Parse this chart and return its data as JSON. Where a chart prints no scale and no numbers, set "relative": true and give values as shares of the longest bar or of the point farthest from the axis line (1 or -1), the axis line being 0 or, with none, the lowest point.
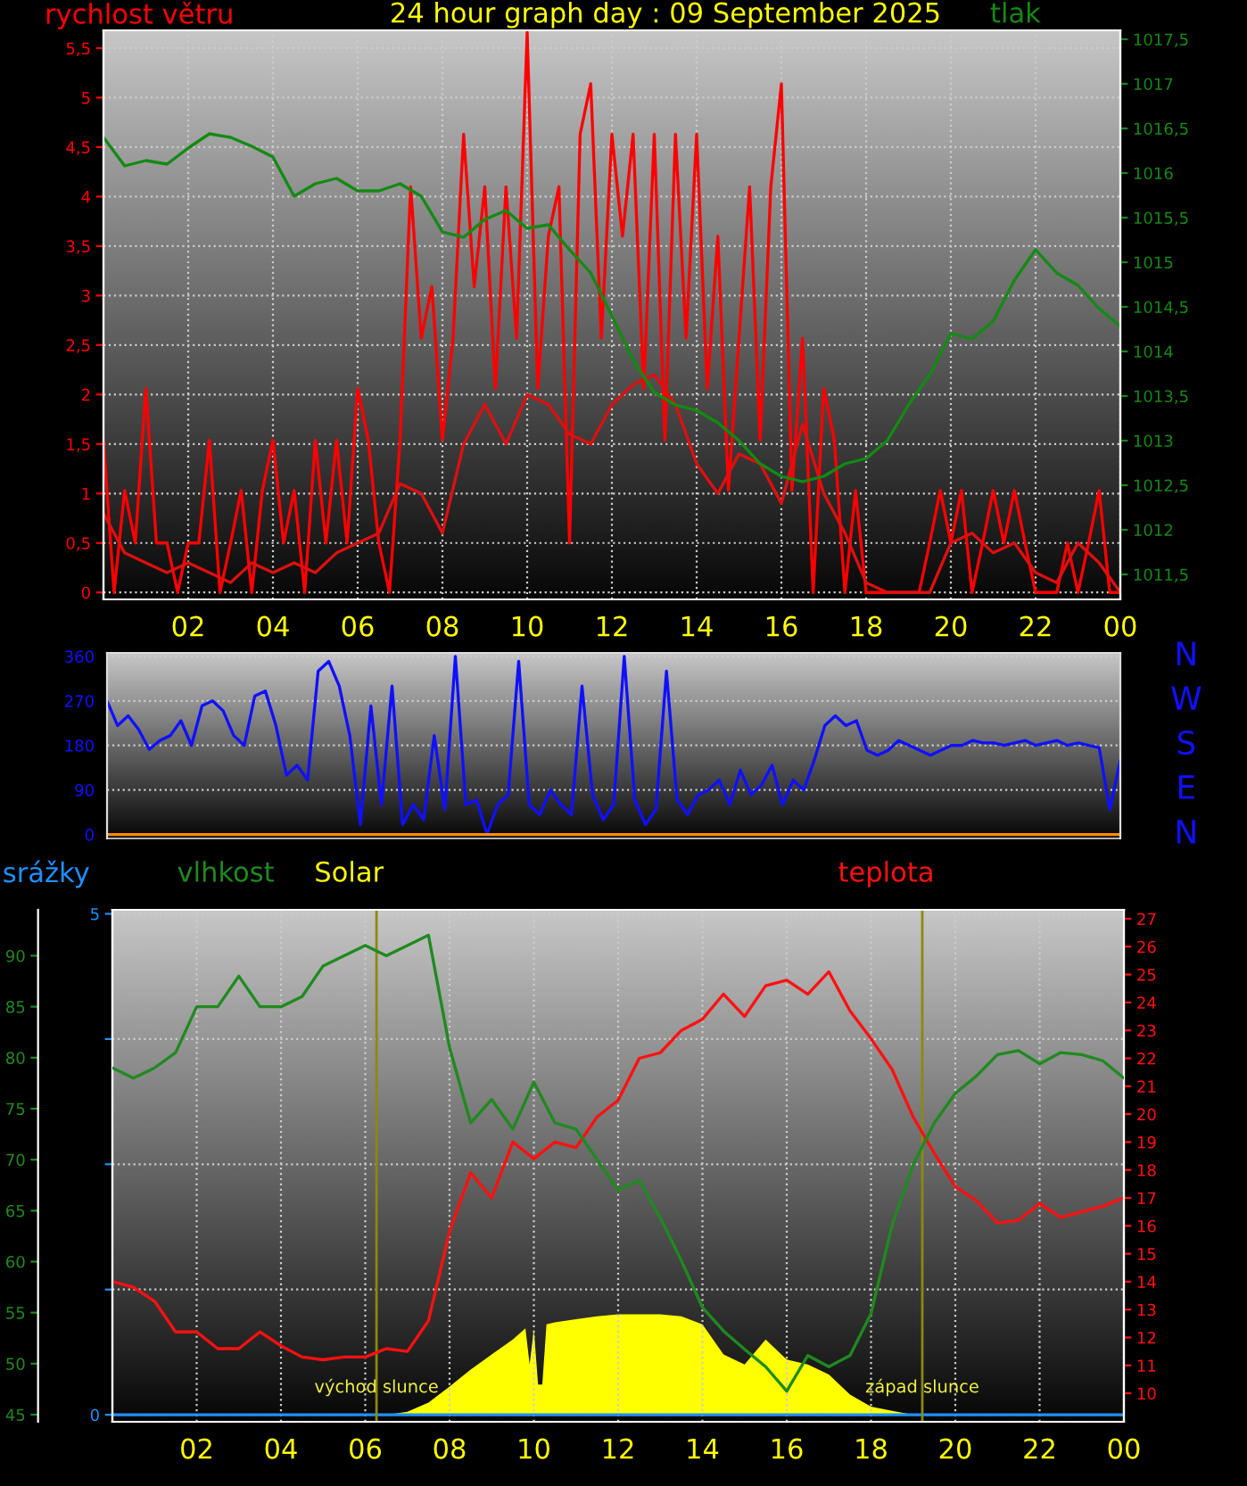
{
  "chart_data": [
    {
      "type": "line",
      "title": "24 hour graph day : 09 September 2025",
      "ylabel": "rychlost větru",
      "y2label": "tlak",
      "xlim": [
        "2025-09-09T00:00",
        "2025-09-10T00:00"
      ],
      "xticks": [
        {
          "value": "2025-09-09T02:00",
          "label": "02"
        },
        {
          "value": "2025-09-09T04:00",
          "label": "04"
        },
        {
          "value": "2025-09-09T06:00",
          "label": "06"
        },
        {
          "value": "2025-09-09T08:00",
          "label": "08"
        },
        {
          "value": "2025-09-09T10:00",
          "label": "10"
        },
        {
          "value": "2025-09-09T12:00",
          "label": "12"
        },
        {
          "value": "2025-09-09T14:00",
          "label": "14"
        },
        {
          "value": "2025-09-09T16:00",
          "label": "16"
        },
        {
          "value": "2025-09-09T18:00",
          "label": "18"
        },
        {
          "value": "2025-09-09T20:00",
          "label": "20"
        },
        {
          "value": "2025-09-09T22:00",
          "label": "22"
        },
        {
          "value": "2025-09-10T00:00",
          "label": "00"
        }
      ],
      "ylim": [
        -0.07,
        5.68
      ],
      "yticks": [
        0,
        {
          "value": 0.5,
          "label": "0,5"
        },
        1,
        {
          "value": 1.5,
          "label": "1,5"
        },
        2,
        {
          "value": 2.5,
          "label": "2,5"
        },
        3,
        {
          "value": 3.5,
          "label": "3,5"
        },
        4,
        {
          "value": 4.5,
          "label": "4,5"
        },
        5,
        {
          "value": 5.5,
          "label": "5,5"
        }
      ],
      "y2lim": [
        1011.22,
        1017.6
      ],
      "y2ticks": [
        {
          "value": 1011.5,
          "label": "1011,5"
        },
        1012,
        {
          "value": 1012.5,
          "label": "1012,5"
        },
        1013,
        {
          "value": 1013.5,
          "label": "1013,5"
        },
        1014,
        {
          "value": 1014.5,
          "label": "1014,5"
        },
        1015,
        {
          "value": 1015.5,
          "label": "1015,5"
        },
        1016,
        {
          "value": 1016.5,
          "label": "1016,5"
        },
        1017,
        {
          "value": 1017.5,
          "label": "1017,5"
        }
      ],
      "grid": true,
      "series": [
        {
          "color": "#ff0000",
          "x": [
            "2025-09-09T00:00",
            "2025-09-09T00:15",
            "2025-09-09T00:30",
            "2025-09-09T00:45",
            "2025-09-09T01:00",
            "2025-09-09T01:15",
            "2025-09-09T01:30",
            "2025-09-09T01:45",
            "2025-09-09T02:00",
            "2025-09-09T02:15",
            "2025-09-09T02:30",
            "2025-09-09T02:45",
            "2025-09-09T03:00",
            "2025-09-09T03:15",
            "2025-09-09T03:30",
            "2025-09-09T03:45",
            "2025-09-09T04:00",
            "2025-09-09T04:15",
            "2025-09-09T04:30",
            "2025-09-09T04:45",
            "2025-09-09T05:00",
            "2025-09-09T05:15",
            "2025-09-09T05:30",
            "2025-09-09T05:45",
            "2025-09-09T06:00",
            "2025-09-09T06:15",
            "2025-09-09T06:30",
            "2025-09-09T06:45",
            "2025-09-09T07:00",
            "2025-09-09T07:15",
            "2025-09-09T07:30",
            "2025-09-09T07:45",
            "2025-09-09T08:00",
            "2025-09-09T08:15",
            "2025-09-09T08:30",
            "2025-09-09T08:45",
            "2025-09-09T09:00",
            "2025-09-09T09:15",
            "2025-09-09T09:30",
            "2025-09-09T09:45",
            "2025-09-09T10:00",
            "2025-09-09T10:15",
            "2025-09-09T10:30",
            "2025-09-09T10:45",
            "2025-09-09T11:00",
            "2025-09-09T11:15",
            "2025-09-09T11:30",
            "2025-09-09T11:45",
            "2025-09-09T12:00",
            "2025-09-09T12:15",
            "2025-09-09T12:30",
            "2025-09-09T12:45",
            "2025-09-09T13:00",
            "2025-09-09T13:15",
            "2025-09-09T13:30",
            "2025-09-09T13:45",
            "2025-09-09T14:00",
            "2025-09-09T14:15",
            "2025-09-09T14:30",
            "2025-09-09T14:45",
            "2025-09-09T15:00",
            "2025-09-09T15:15",
            "2025-09-09T15:30",
            "2025-09-09T15:45",
            "2025-09-09T16:00",
            "2025-09-09T16:15",
            "2025-09-09T16:30",
            "2025-09-09T16:45",
            "2025-09-09T17:00",
            "2025-09-09T17:15",
            "2025-09-09T17:30",
            "2025-09-09T17:45",
            "2025-09-09T18:00",
            "2025-09-09T18:15",
            "2025-09-09T18:30",
            "2025-09-09T18:45",
            "2025-09-09T19:00",
            "2025-09-09T19:15",
            "2025-09-09T19:30",
            "2025-09-09T19:45",
            "2025-09-09T20:00",
            "2025-09-09T20:15",
            "2025-09-09T20:30",
            "2025-09-09T20:45",
            "2025-09-09T21:00",
            "2025-09-09T21:15",
            "2025-09-09T21:30",
            "2025-09-09T21:45",
            "2025-09-09T22:00",
            "2025-09-09T22:15",
            "2025-09-09T22:30",
            "2025-09-09T22:45",
            "2025-09-09T23:00",
            "2025-09-09T23:15",
            "2025-09-09T23:30",
            "2025-09-09T23:45",
            "2025-09-10T00:00"
          ],
          "values": [
            1.54,
            0,
            1.03,
            0.5,
            2.06,
            0.5,
            0.5,
            0,
            0.5,
            0.5,
            1.54,
            0,
            0.5,
            1.03,
            0,
            1.03,
            1.54,
            0.5,
            1.03,
            0,
            1.54,
            0.5,
            1.54,
            0.5,
            2.06,
            1.54,
            0.5,
            0,
            1.54,
            4.1,
            2.57,
            3.09,
            1.54,
            2.57,
            4.63,
            3.09,
            4.1,
            2.06,
            4.1,
            2.57,
            5.66,
            2.06,
            3.6,
            4.1,
            0.5,
            4.63,
            5.14,
            2.57,
            4.63,
            3.6,
            4.63,
            2.06,
            4.63,
            1.54,
            4.63,
            2.57,
            4.63,
            2.06,
            3.6,
            1.03,
            2.57,
            4.1,
            1.54,
            4.1,
            5.14,
            1.03,
            2.57,
            0,
            2.06,
            1.54,
            0,
            1.03,
            0,
            0,
            0,
            0,
            0,
            0,
            0.5,
            1.03,
            0.5,
            1.03,
            0,
            0.5,
            1.03,
            0.5,
            1.03,
            0.5,
            0,
            0,
            0,
            0.5,
            0,
            0.5,
            1.03,
            0,
            0
          ]
        },
        {
          "color": "#dd1010",
          "x": [
            "2025-09-09T00:00",
            "2025-09-09T00:30",
            "2025-09-09T01:00",
            "2025-09-09T01:30",
            "2025-09-09T02:00",
            "2025-09-09T02:30",
            "2025-09-09T03:00",
            "2025-09-09T03:30",
            "2025-09-09T04:00",
            "2025-09-09T04:30",
            "2025-09-09T05:00",
            "2025-09-09T05:30",
            "2025-09-09T06:00",
            "2025-09-09T06:30",
            "2025-09-09T07:00",
            "2025-09-09T07:30",
            "2025-09-09T08:00",
            "2025-09-09T08:30",
            "2025-09-09T09:00",
            "2025-09-09T09:30",
            "2025-09-09T10:00",
            "2025-09-09T10:30",
            "2025-09-09T11:00",
            "2025-09-09T11:30",
            "2025-09-09T12:00",
            "2025-09-09T12:30",
            "2025-09-09T13:00",
            "2025-09-09T13:30",
            "2025-09-09T14:00",
            "2025-09-09T14:30",
            "2025-09-09T15:00",
            "2025-09-09T15:30",
            "2025-09-09T16:00",
            "2025-09-09T16:30",
            "2025-09-09T17:00",
            "2025-09-09T17:30",
            "2025-09-09T18:00",
            "2025-09-09T18:30",
            "2025-09-09T19:00",
            "2025-09-09T19:30",
            "2025-09-09T20:00",
            "2025-09-09T20:30",
            "2025-09-09T21:00",
            "2025-09-09T21:30",
            "2025-09-09T22:00",
            "2025-09-09T22:30",
            "2025-09-09T23:00",
            "2025-09-09T23:30",
            "2025-09-10T00:00"
          ],
          "values": [
            0.8,
            0.4,
            0.3,
            0.2,
            0.3,
            0.2,
            0.1,
            0.3,
            0.2,
            0.3,
            0.2,
            0.4,
            0.5,
            0.6,
            1.1,
            1.0,
            0.6,
            1.5,
            1.9,
            1.5,
            2.0,
            1.9,
            1.6,
            1.5,
            1.9,
            2.1,
            2.2,
            1.9,
            1.3,
            1.0,
            1.4,
            1.3,
            0.9,
            1.7,
            1.0,
            0.6,
            0.1,
            0,
            0,
            0,
            0.5,
            0.6,
            0.4,
            0.5,
            0.2,
            0.1,
            0.5,
            0.3,
            0
          ]
        },
        {
          "color": "#138a13",
          "axis": "y2",
          "x": [
            "2025-09-09T00:00",
            "2025-09-09T00:30",
            "2025-09-09T01:00",
            "2025-09-09T01:30",
            "2025-09-09T02:00",
            "2025-09-09T02:30",
            "2025-09-09T03:00",
            "2025-09-09T03:30",
            "2025-09-09T04:00",
            "2025-09-09T04:30",
            "2025-09-09T05:00",
            "2025-09-09T05:30",
            "2025-09-09T06:00",
            "2025-09-09T06:30",
            "2025-09-09T07:00",
            "2025-09-09T07:30",
            "2025-09-09T08:00",
            "2025-09-09T08:30",
            "2025-09-09T09:00",
            "2025-09-09T09:30",
            "2025-09-09T10:00",
            "2025-09-09T10:30",
            "2025-09-09T11:00",
            "2025-09-09T11:30",
            "2025-09-09T12:00",
            "2025-09-09T12:30",
            "2025-09-09T13:00",
            "2025-09-09T13:30",
            "2025-09-09T14:00",
            "2025-09-09T14:30",
            "2025-09-09T15:00",
            "2025-09-09T15:30",
            "2025-09-09T16:00",
            "2025-09-09T16:30",
            "2025-09-09T17:00",
            "2025-09-09T17:30",
            "2025-09-09T18:00",
            "2025-09-09T18:30",
            "2025-09-09T19:00",
            "2025-09-09T19:30",
            "2025-09-09T20:00",
            "2025-09-09T20:30",
            "2025-09-09T21:00",
            "2025-09-09T21:30",
            "2025-09-09T22:00",
            "2025-09-09T22:30",
            "2025-09-09T23:00",
            "2025-09-09T23:30",
            "2025-09-10T00:00"
          ],
          "values": [
            1016.4,
            1016.08,
            1016.14,
            1016.1,
            1016.28,
            1016.44,
            1016.4,
            1016.3,
            1016.18,
            1015.74,
            1015.88,
            1015.94,
            1015.8,
            1015.8,
            1015.88,
            1015.74,
            1015.34,
            1015.28,
            1015.48,
            1015.58,
            1015.38,
            1015.42,
            1015.14,
            1014.88,
            1014.4,
            1013.9,
            1013.54,
            1013.4,
            1013.34,
            1013.2,
            1013.0,
            1012.74,
            1012.6,
            1012.54,
            1012.6,
            1012.74,
            1012.8,
            1013.0,
            1013.4,
            1013.74,
            1014.2,
            1014.14,
            1014.34,
            1014.8,
            1015.14,
            1014.88,
            1014.74,
            1014.48,
            1014.28
          ]
        }
      ]
    },
    {
      "type": "line",
      "xlim": [
        "2025-09-09T00:00",
        "2025-09-10T00:00"
      ],
      "tick_labels": "y",
      "ylim": [
        -8,
        367
      ],
      "yticks": [
        0,
        90,
        180,
        270,
        360
      ],
      "grid": "y",
      "annotations": [
        "N",
        "W",
        "S",
        "E",
        "N"
      ],
      "series": [
        {
          "color": "#1010ff",
          "x": [
            "2025-09-09T00:00",
            "2025-09-09T00:15",
            "2025-09-09T00:30",
            "2025-09-09T00:45",
            "2025-09-09T01:00",
            "2025-09-09T01:15",
            "2025-09-09T01:30",
            "2025-09-09T01:45",
            "2025-09-09T02:00",
            "2025-09-09T02:15",
            "2025-09-09T02:30",
            "2025-09-09T02:45",
            "2025-09-09T03:00",
            "2025-09-09T03:15",
            "2025-09-09T03:30",
            "2025-09-09T03:45",
            "2025-09-09T04:00",
            "2025-09-09T04:15",
            "2025-09-09T04:30",
            "2025-09-09T04:45",
            "2025-09-09T05:00",
            "2025-09-09T05:15",
            "2025-09-09T05:30",
            "2025-09-09T05:45",
            "2025-09-09T06:00",
            "2025-09-09T06:15",
            "2025-09-09T06:30",
            "2025-09-09T06:45",
            "2025-09-09T07:00",
            "2025-09-09T07:15",
            "2025-09-09T07:30",
            "2025-09-09T07:45",
            "2025-09-09T08:00",
            "2025-09-09T08:15",
            "2025-09-09T08:30",
            "2025-09-09T08:45",
            "2025-09-09T09:00",
            "2025-09-09T09:15",
            "2025-09-09T09:30",
            "2025-09-09T09:45",
            "2025-09-09T10:00",
            "2025-09-09T10:15",
            "2025-09-09T10:30",
            "2025-09-09T10:45",
            "2025-09-09T11:00",
            "2025-09-09T11:15",
            "2025-09-09T11:30",
            "2025-09-09T11:45",
            "2025-09-09T12:00",
            "2025-09-09T12:15",
            "2025-09-09T12:30",
            "2025-09-09T12:45",
            "2025-09-09T13:00",
            "2025-09-09T13:15",
            "2025-09-09T13:30",
            "2025-09-09T13:45",
            "2025-09-09T14:00",
            "2025-09-09T14:15",
            "2025-09-09T14:30",
            "2025-09-09T14:45",
            "2025-09-09T15:00",
            "2025-09-09T15:15",
            "2025-09-09T15:30",
            "2025-09-09T15:45",
            "2025-09-09T16:00",
            "2025-09-09T16:15",
            "2025-09-09T16:30",
            "2025-09-09T16:45",
            "2025-09-09T17:00",
            "2025-09-09T17:15",
            "2025-09-09T17:30",
            "2025-09-09T17:45",
            "2025-09-09T18:00",
            "2025-09-09T18:15",
            "2025-09-09T18:30",
            "2025-09-09T18:45",
            "2025-09-09T19:00",
            "2025-09-09T19:15",
            "2025-09-09T19:30",
            "2025-09-09T19:45",
            "2025-09-09T20:00",
            "2025-09-09T20:15",
            "2025-09-09T20:30",
            "2025-09-09T20:45",
            "2025-09-09T21:00",
            "2025-09-09T21:15",
            "2025-09-09T21:30",
            "2025-09-09T21:45",
            "2025-09-09T22:00",
            "2025-09-09T22:15",
            "2025-09-09T22:30",
            "2025-09-09T22:45",
            "2025-09-09T23:00",
            "2025-09-09T23:15",
            "2025-09-09T23:30",
            "2025-09-09T23:45",
            "2025-09-10T00:00"
          ],
          "values": [
            270,
            220,
            240,
            212,
            172,
            190,
            200,
            230,
            180,
            260,
            270,
            250,
            200,
            180,
            280,
            290,
            220,
            120,
            140,
            110,
            330,
            350,
            300,
            200,
            20,
            260,
            60,
            300,
            20,
            60,
            30,
            200,
            50,
            360,
            60,
            70,
            0,
            60,
            80,
            350,
            60,
            40,
            90,
            60,
            40,
            300,
            80,
            30,
            60,
            360,
            70,
            20,
            50,
            330,
            70,
            40,
            80,
            90,
            110,
            60,
            130,
            80,
            100,
            140,
            60,
            110,
            90,
            150,
            220,
            240,
            220,
            230,
            170,
            160,
            170,
            190,
            180,
            170,
            160,
            170,
            180,
            180,
            190,
            185,
            185,
            180,
            185,
            190,
            180,
            185,
            190,
            180,
            185,
            180,
            175,
            50,
            150
          ]
        },
        {
          "color": "#ff8c00",
          "x": [
            "2025-09-09T00:00",
            "2025-09-09T02:00",
            "2025-09-09T04:00",
            "2025-09-09T06:00",
            "2025-09-09T08:00",
            "2025-09-09T10:00",
            "2025-09-09T12:00",
            "2025-09-09T14:00",
            "2025-09-09T16:00",
            "2025-09-09T18:00",
            "2025-09-09T20:00",
            "2025-09-09T22:00",
            "2025-09-10T00:00"
          ],
          "values": [
            0,
            0,
            0,
            0,
            0,
            0,
            0,
            0,
            0,
            0,
            0,
            0,
            0
          ]
        }
      ]
    },
    {
      "type": "line",
      "xlim": [
        "2025-09-09T00:00",
        "2025-09-10T00:00"
      ],
      "xticks": [
        {
          "value": "2025-09-09T02:00",
          "label": "02"
        },
        {
          "value": "2025-09-09T04:00",
          "label": "04"
        },
        {
          "value": "2025-09-09T06:00",
          "label": "06"
        },
        {
          "value": "2025-09-09T08:00",
          "label": "08"
        },
        {
          "value": "2025-09-09T10:00",
          "label": "10"
        },
        {
          "value": "2025-09-09T12:00",
          "label": "12"
        },
        {
          "value": "2025-09-09T14:00",
          "label": "14"
        },
        {
          "value": "2025-09-09T16:00",
          "label": "16"
        },
        {
          "value": "2025-09-09T18:00",
          "label": "18"
        },
        {
          "value": "2025-09-09T20:00",
          "label": "20"
        },
        {
          "value": "2025-09-09T22:00",
          "label": "22"
        },
        {
          "value": "2025-09-10T00:00",
          "label": "00"
        }
      ],
      "ylim": [
        -0.07,
        5.04
      ],
      "yticks": [
        0,
        {
          "value": 1.25,
          "label": null
        },
        {
          "value": 2.5,
          "label": null
        },
        {
          "value": 3.75,
          "label": null
        },
        5
      ],
      "y2lim": [
        8.98,
        27.32
      ],
      "y2ticks": [
        10,
        11,
        12,
        13,
        14,
        15,
        16,
        17,
        18,
        19,
        20,
        21,
        22,
        23,
        24,
        25,
        26,
        27
      ],
      "y3lim": [
        44.3,
        94.5
      ],
      "y3ticks": [
        45,
        50,
        55,
        60,
        65,
        70,
        75,
        80,
        85,
        90
      ],
      "grid": true,
      "legend": "top",
      "ref_lines": [
        {
          "axis": "x",
          "value": "2025-09-09T06:16",
          "label": "východ slunce",
          "color": "#8a8a10"
        },
        {
          "axis": "x",
          "value": "2025-09-09T19:13",
          "label": "západ slunce",
          "color": "#8a8a10"
        }
      ],
      "series": [
        {
          "name": "srážky",
          "color": "#1e90ff",
          "x": [
            "2025-09-09T00:00",
            "2025-09-09T02:00",
            "2025-09-09T04:00",
            "2025-09-09T06:00",
            "2025-09-09T08:00",
            "2025-09-09T10:00",
            "2025-09-09T12:00",
            "2025-09-09T14:00",
            "2025-09-09T16:00",
            "2025-09-09T18:00",
            "2025-09-09T20:00",
            "2025-09-09T22:00",
            "2025-09-10T00:00"
          ],
          "values": [
            0,
            0,
            0,
            0,
            0,
            0,
            0,
            0,
            0,
            0,
            0,
            0,
            0
          ]
        },
        {
          "name": "vlhkost",
          "color": "#1f8a1f",
          "axis": "y3",
          "x": [
            "2025-09-09T00:00",
            "2025-09-09T00:30",
            "2025-09-09T01:00",
            "2025-09-09T01:30",
            "2025-09-09T02:00",
            "2025-09-09T02:30",
            "2025-09-09T03:00",
            "2025-09-09T03:30",
            "2025-09-09T04:00",
            "2025-09-09T04:30",
            "2025-09-09T05:00",
            "2025-09-09T05:30",
            "2025-09-09T06:00",
            "2025-09-09T06:30",
            "2025-09-09T07:00",
            "2025-09-09T07:30",
            "2025-09-09T08:00",
            "2025-09-09T08:30",
            "2025-09-09T09:00",
            "2025-09-09T09:30",
            "2025-09-09T10:00",
            "2025-09-09T10:30",
            "2025-09-09T11:00",
            "2025-09-09T11:30",
            "2025-09-09T12:00",
            "2025-09-09T12:30",
            "2025-09-09T13:00",
            "2025-09-09T13:30",
            "2025-09-09T14:00",
            "2025-09-09T14:30",
            "2025-09-09T15:00",
            "2025-09-09T15:30",
            "2025-09-09T16:00",
            "2025-09-09T16:30",
            "2025-09-09T17:00",
            "2025-09-09T17:30",
            "2025-09-09T18:00",
            "2025-09-09T18:30",
            "2025-09-09T19:00",
            "2025-09-09T19:30",
            "2025-09-09T20:00",
            "2025-09-09T20:30",
            "2025-09-09T21:00",
            "2025-09-09T21:30",
            "2025-09-09T22:00",
            "2025-09-09T22:30",
            "2025-09-09T23:00",
            "2025-09-09T23:30",
            "2025-09-10T00:00"
          ],
          "values": [
            79,
            78,
            79,
            80.5,
            85,
            85,
            88,
            85,
            85,
            86,
            89,
            90,
            91,
            90,
            91,
            92,
            81,
            73.6,
            75.9,
            73,
            77.6,
            73.6,
            73,
            70,
            67,
            68,
            64.3,
            60.1,
            55.5,
            53.2,
            51.4,
            49.7,
            47.3,
            50.8,
            49.7,
            50.8,
            54.9,
            63.6,
            69.5,
            73.6,
            76.5,
            78.2,
            80.3,
            80.7,
            79.4,
            80.5,
            80.3,
            79.7,
            78
          ]
        },
        {
          "name": "teplota",
          "color": "#ff1010",
          "axis": "y2",
          "x": [
            "2025-09-09T00:00",
            "2025-09-09T00:30",
            "2025-09-09T01:00",
            "2025-09-09T01:30",
            "2025-09-09T02:00",
            "2025-09-09T02:30",
            "2025-09-09T03:00",
            "2025-09-09T03:30",
            "2025-09-09T04:00",
            "2025-09-09T04:30",
            "2025-09-09T05:00",
            "2025-09-09T05:30",
            "2025-09-09T06:00",
            "2025-09-09T06:30",
            "2025-09-09T07:00",
            "2025-09-09T07:30",
            "2025-09-09T08:00",
            "2025-09-09T08:30",
            "2025-09-09T09:00",
            "2025-09-09T09:30",
            "2025-09-09T10:00",
            "2025-09-09T10:30",
            "2025-09-09T11:00",
            "2025-09-09T11:30",
            "2025-09-09T12:00",
            "2025-09-09T12:30",
            "2025-09-09T13:00",
            "2025-09-09T13:30",
            "2025-09-09T14:00",
            "2025-09-09T14:30",
            "2025-09-09T15:00",
            "2025-09-09T15:30",
            "2025-09-09T16:00",
            "2025-09-09T16:30",
            "2025-09-09T17:00",
            "2025-09-09T17:30",
            "2025-09-09T18:00",
            "2025-09-09T18:30",
            "2025-09-09T19:00",
            "2025-09-09T19:30",
            "2025-09-09T20:00",
            "2025-09-09T20:30",
            "2025-09-09T21:00",
            "2025-09-09T21:30",
            "2025-09-09T22:00",
            "2025-09-09T22:30",
            "2025-09-09T23:00",
            "2025-09-09T23:30",
            "2025-09-10T00:00"
          ],
          "values": [
            14.0,
            13.8,
            13.3,
            12.2,
            12.2,
            11.6,
            11.6,
            12.2,
            11.7,
            11.3,
            11.2,
            11.3,
            11.3,
            11.6,
            11.5,
            12.6,
            15.8,
            17.9,
            17.0,
            19.0,
            18.4,
            19.0,
            18.8,
            19.9,
            20.5,
            22.0,
            22.2,
            23.0,
            23.4,
            24.3,
            23.5,
            24.6,
            24.8,
            24.3,
            25.1,
            23.7,
            22.7,
            21.6,
            19.9,
            18.6,
            17.4,
            16.9,
            16.1,
            16.2,
            16.8,
            16.3,
            16.5,
            16.7,
            17.0
          ]
        }
      ]
    },
    {
      "type": "area",
      "relative": true,
      "xlim": [
        "2025-09-09T00:00",
        "2025-09-10T00:00"
      ],
      "legend": "top",
      "series": [
        {
          "name": "Solar",
          "color": "#ffff00",
          "x": [
            "2025-09-09T00:00",
            "2025-09-09T06:30",
            "2025-09-09T07:00",
            "2025-09-09T07:30",
            "2025-09-09T08:00",
            "2025-09-09T08:30",
            "2025-09-09T09:00",
            "2025-09-09T09:30",
            "2025-09-09T09:48",
            "2025-09-09T09:54",
            "2025-09-09T10:00",
            "2025-09-09T10:06",
            "2025-09-09T10:12",
            "2025-09-09T10:18",
            "2025-09-09T10:30",
            "2025-09-09T11:00",
            "2025-09-09T11:30",
            "2025-09-09T12:00",
            "2025-09-09T12:30",
            "2025-09-09T13:00",
            "2025-09-09T13:30",
            "2025-09-09T14:00",
            "2025-09-09T14:30",
            "2025-09-09T15:00",
            "2025-09-09T15:30",
            "2025-09-09T16:00",
            "2025-09-09T16:30",
            "2025-09-09T17:00",
            "2025-09-09T17:30",
            "2025-09-09T18:00",
            "2025-09-09T18:30",
            "2025-09-09T19:00",
            "2025-09-10T00:00"
          ],
          "values": [
            0,
            0,
            0.03,
            0.12,
            0.28,
            0.45,
            0.6,
            0.75,
            0.86,
            0.5,
            0.85,
            0.3,
            0.3,
            0.9,
            0.92,
            0.95,
            0.98,
            1.0,
            1.0,
            1.0,
            0.98,
            0.9,
            0.6,
            0.5,
            0.75,
            0.55,
            0.5,
            0.4,
            0.2,
            0.08,
            0.04,
            0,
            0
          ]
        }
      ]
    }
  ]
}
